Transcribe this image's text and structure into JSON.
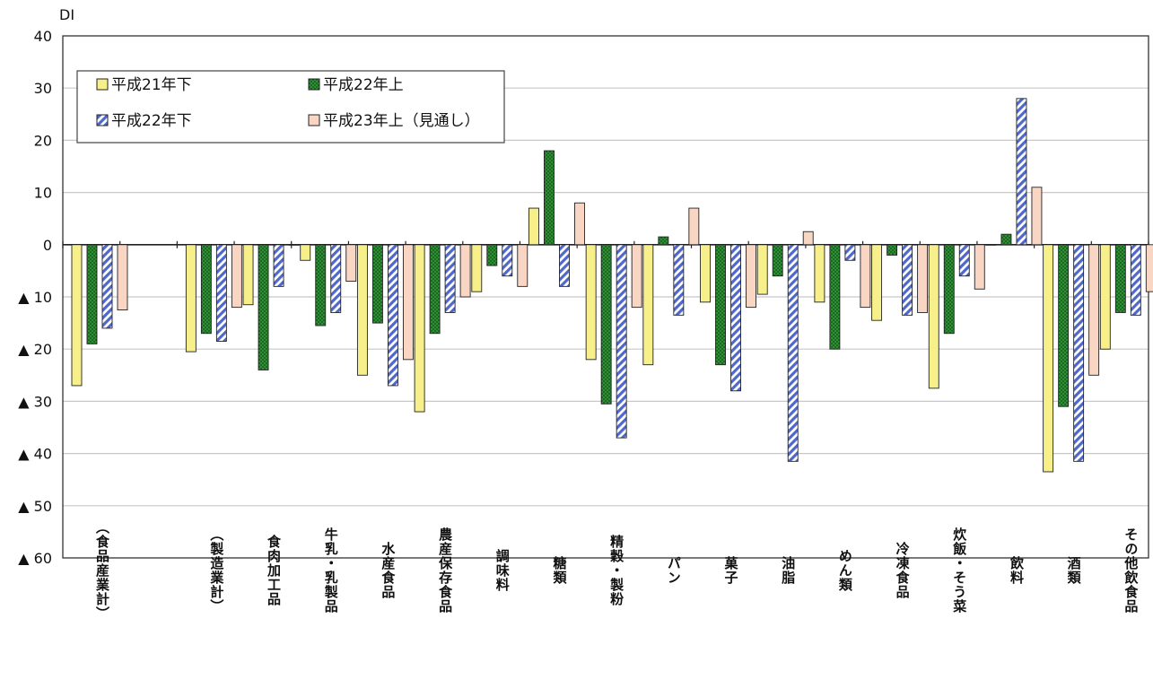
{
  "chart_data": {
    "type": "bar",
    "ylabel": "DI",
    "ylim": [
      -60,
      40
    ],
    "yticks": [
      40,
      30,
      20,
      10,
      0,
      -10,
      -20,
      -30,
      -40,
      -50,
      -60
    ],
    "ytick_labels": [
      "40",
      "30",
      "20",
      "10",
      "0",
      "▲ 10",
      "▲ 20",
      "▲ 30",
      "▲ 40",
      "▲ 50",
      "▲ 60"
    ],
    "grid": true,
    "legend_position": "top-left",
    "categories": [
      "（食品産業計）",
      "",
      "（製造業計）",
      "食肉加工品",
      "牛乳・乳製品",
      "水産食品",
      "農産保存食品",
      "調味料",
      "糖類",
      "精穀・製粉",
      "パン",
      "菓子",
      "油脂",
      "めん類",
      "冷凍食品",
      "炊飯・そう菜",
      "飲料",
      "酒類",
      "その他飲食品"
    ],
    "series": [
      {
        "name": "平成21年下",
        "color": "#f7f08a",
        "pattern": "solid",
        "values": [
          -27,
          null,
          -20.5,
          -11.5,
          -3,
          -25,
          -32,
          -9,
          7,
          -22,
          -23,
          -11,
          -9.5,
          -11,
          -14.5,
          -27.5,
          0,
          -43.5,
          -20
        ]
      },
      {
        "name": "平成22年上",
        "color": "#3a9a3a",
        "pattern": "dotted",
        "values": [
          -19,
          null,
          -17,
          -24,
          -15.5,
          -15,
          -17,
          -4,
          18,
          -30.5,
          1.5,
          -23,
          -6,
          -20,
          -2,
          -17,
          2,
          -31,
          -13
        ]
      },
      {
        "name": "平成22年下",
        "color": "#6d82d6",
        "pattern": "hatched",
        "values": [
          -16,
          null,
          -18.5,
          -8,
          -13,
          -27,
          -13,
          -6,
          -8,
          -37,
          -13.5,
          -28,
          -41.5,
          -3,
          -13.5,
          -6,
          28,
          -41.5,
          -13.5
        ]
      },
      {
        "name": "平成23年上（見通し）",
        "color": "#f9d5c4",
        "pattern": "solid",
        "values": [
          -12.5,
          null,
          -12,
          0,
          -7,
          -22,
          -10,
          -8,
          8,
          -12,
          7,
          -12,
          2.5,
          -12,
          -13,
          -8.5,
          11,
          -25,
          -9
        ]
      }
    ]
  }
}
